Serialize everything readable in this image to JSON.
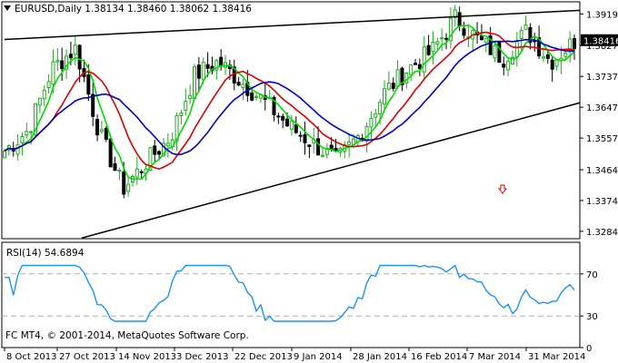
{
  "window": {
    "symbol_line": "EURUSD,Daily  1.38134 1.38460 1.38062 1.38416",
    "copyright": "FC MT4, © 2001-2014, MetaQuotes Software Corp.",
    "current_price": "1.38416"
  },
  "colors": {
    "background": "#ffffff",
    "bull_candle": "#22aa22",
    "bear_candle": "#000000",
    "ma_fast": "#00dd00",
    "ma_mid": "#dd0000",
    "ma_slow": "#0000cc",
    "rsi_line": "#1e90ff",
    "trendline": "#000000",
    "arrow": "#dd0000",
    "level_line": "#b0b0b0"
  },
  "chart_data": [
    {
      "type": "candlestick",
      "title": "EURUSD,Daily  1.38134 1.38460 1.38062 1.38416",
      "y_ticks": [
        "1.39195",
        "1.38275",
        "1.37370",
        "1.36470",
        "1.35570",
        "1.34645",
        "1.33745",
        "1.32845"
      ],
      "y_range": [
        1.3263,
        1.3955
      ],
      "current_price": 1.38416,
      "x_tick_labels": [
        "8 Oct 2013",
        "27 Oct 2013",
        "14 Nov 2013",
        "3 Dec 2013",
        "22 Dec 2013",
        "9 Jan 2014",
        "28 Jan 2014",
        "16 Feb 2014",
        "7 Mar 2014",
        "31 Mar 2014"
      ],
      "close_series_approx": [
        1.352,
        1.358,
        1.376,
        1.382,
        1.357,
        1.341,
        1.349,
        1.356,
        1.374,
        1.378,
        1.372,
        1.366,
        1.359,
        1.354,
        1.349,
        1.357,
        1.369,
        1.376,
        1.381,
        1.391,
        1.384,
        1.379,
        1.387,
        1.378,
        1.384
      ],
      "trendlines": [
        {
          "from": [
            "8 Oct 2013",
            1.3845
          ],
          "to": [
            "7 Apr 2014",
            1.393
          ]
        },
        {
          "from": [
            "22 Oct 2013",
            1.3265
          ],
          "to": [
            "7 Apr 2014",
            1.366
          ]
        }
      ],
      "moving_averages": [
        "fast",
        "mid",
        "slow"
      ],
      "down_arrow_marker": true
    },
    {
      "type": "line",
      "title": "RSI(14) 54.6894",
      "y_ticks": [
        "70",
        "30",
        "0"
      ],
      "levels": [
        70,
        30
      ],
      "ylim": [
        0,
        100
      ],
      "last_value": 54.6894
    }
  ]
}
